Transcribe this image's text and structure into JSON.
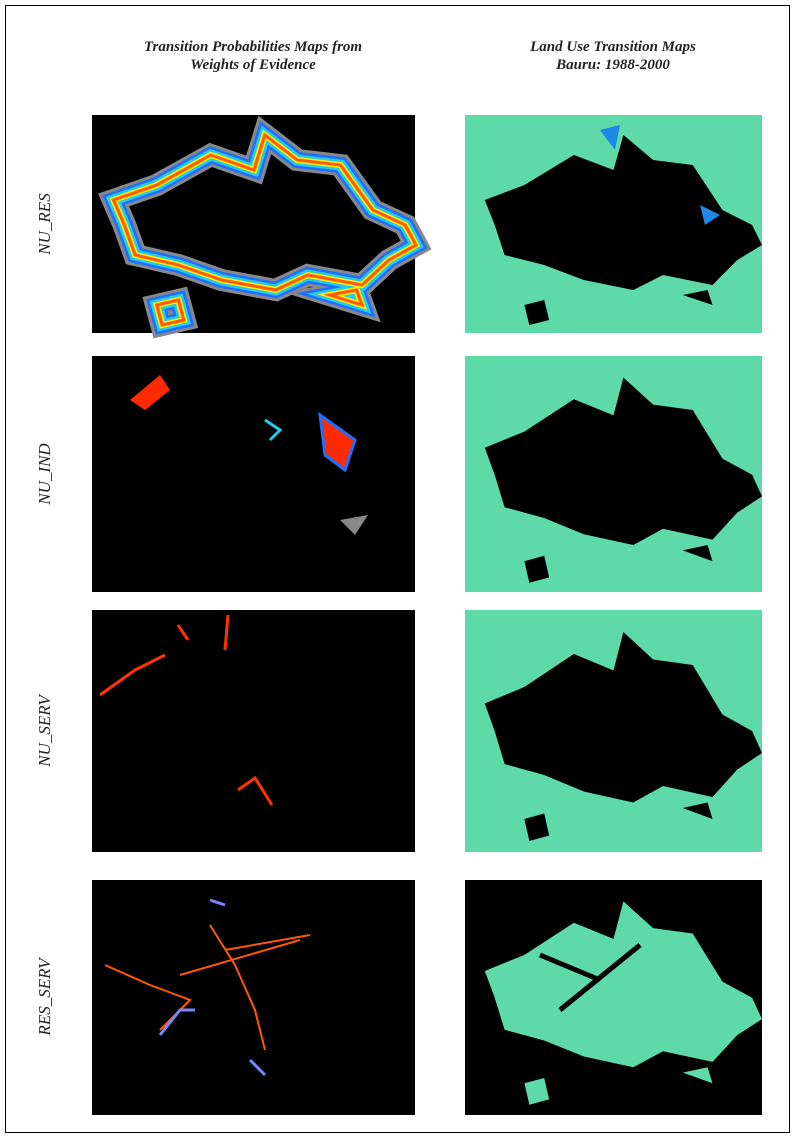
{
  "headers": {
    "left": [
      "Transition Probabilities Maps from",
      "Weights of Evidence"
    ],
    "right": [
      "Land Use Transition Maps",
      "Bauru: 1988-2000"
    ]
  },
  "rows": [
    {
      "label": "NU_RES"
    },
    {
      "label": "NU_IND"
    },
    {
      "label": "NU_SERV"
    },
    {
      "label": "RES_SERV"
    }
  ]
}
